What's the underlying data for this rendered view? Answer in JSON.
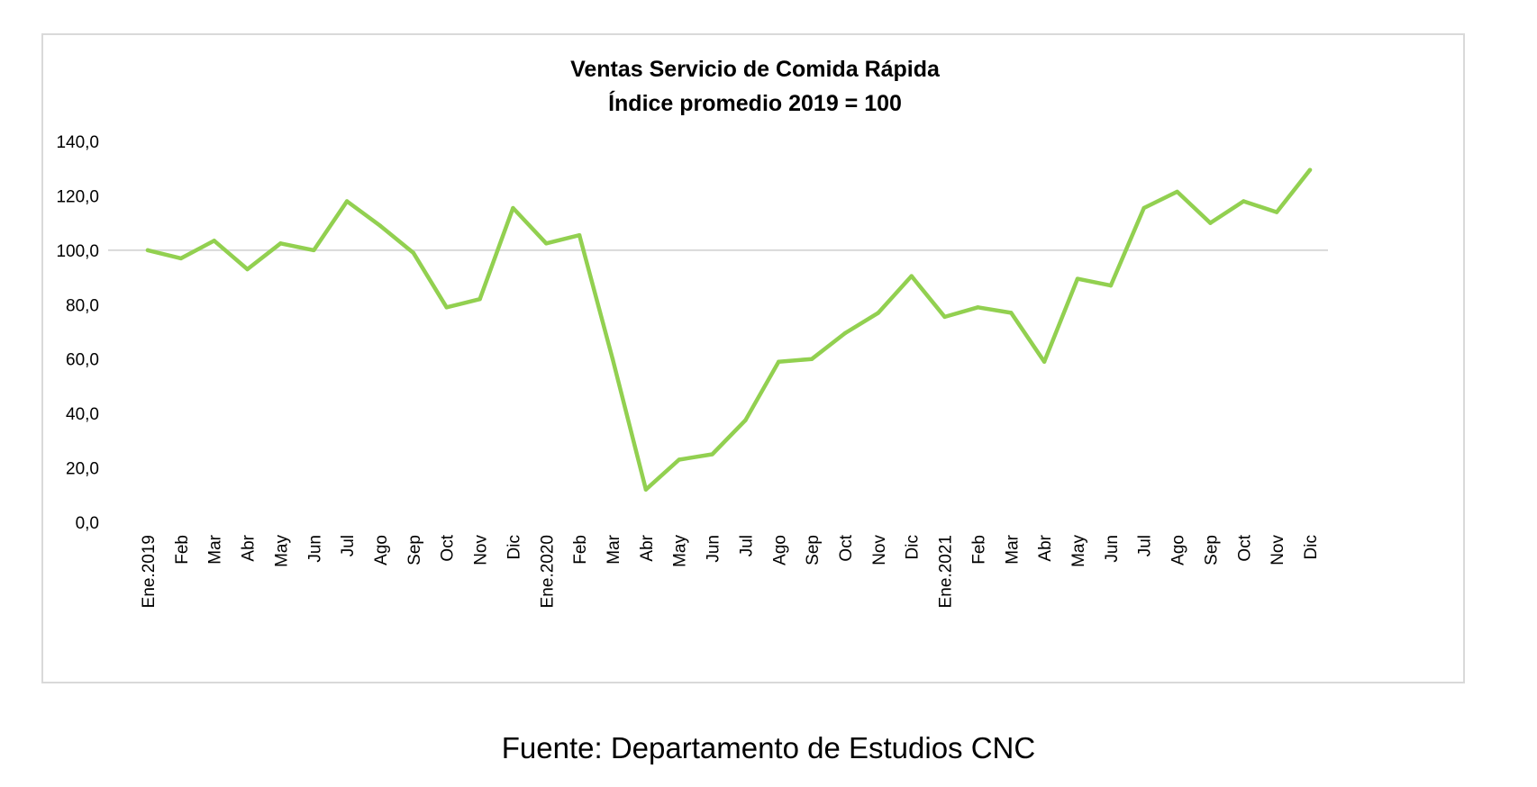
{
  "chart_data": {
    "type": "line",
    "title": "Ventas Servicio de Comida Rápida",
    "subtitle": "Índice promedio 2019 = 100",
    "xlabel": "",
    "ylabel": "",
    "ylim": [
      0,
      140
    ],
    "yticks": [
      "0,0",
      "20,0",
      "40,0",
      "60,0",
      "80,0",
      "100,0",
      "120,0",
      "140,0"
    ],
    "reference_line": 100,
    "grid": false,
    "line_color": "#92d050",
    "categories": [
      "Ene.2019",
      "Feb",
      "Mar",
      "Abr",
      "May",
      "Jun",
      "Jul",
      "Ago",
      "Sep",
      "Oct",
      "Nov",
      "Dic",
      "Ene.2020",
      "Feb",
      "Mar",
      "Abr",
      "May",
      "Jun",
      "Jul",
      "Ago",
      "Sep",
      "Oct",
      "Nov",
      "Dic",
      "Ene.2021",
      "Feb",
      "Mar",
      "Abr",
      "May",
      "Jun",
      "Jul",
      "Ago",
      "Sep",
      "Oct",
      "Nov",
      "Dic"
    ],
    "series": [
      {
        "name": "",
        "values": [
          100.0,
          97.0,
          103.5,
          93.0,
          102.5,
          100.0,
          118.0,
          109.0,
          99.0,
          79.0,
          82.0,
          115.5,
          102.5,
          105.5,
          60.0,
          12.0,
          23.0,
          25.0,
          37.5,
          59.0,
          60.0,
          69.5,
          77.0,
          90.5,
          75.5,
          79.0,
          77.0,
          59.0,
          89.5,
          87.0,
          115.5,
          121.5,
          110.0,
          118.0,
          114.0,
          129.5
        ]
      }
    ]
  },
  "caption": "Fuente: Departamento de Estudios CNC"
}
